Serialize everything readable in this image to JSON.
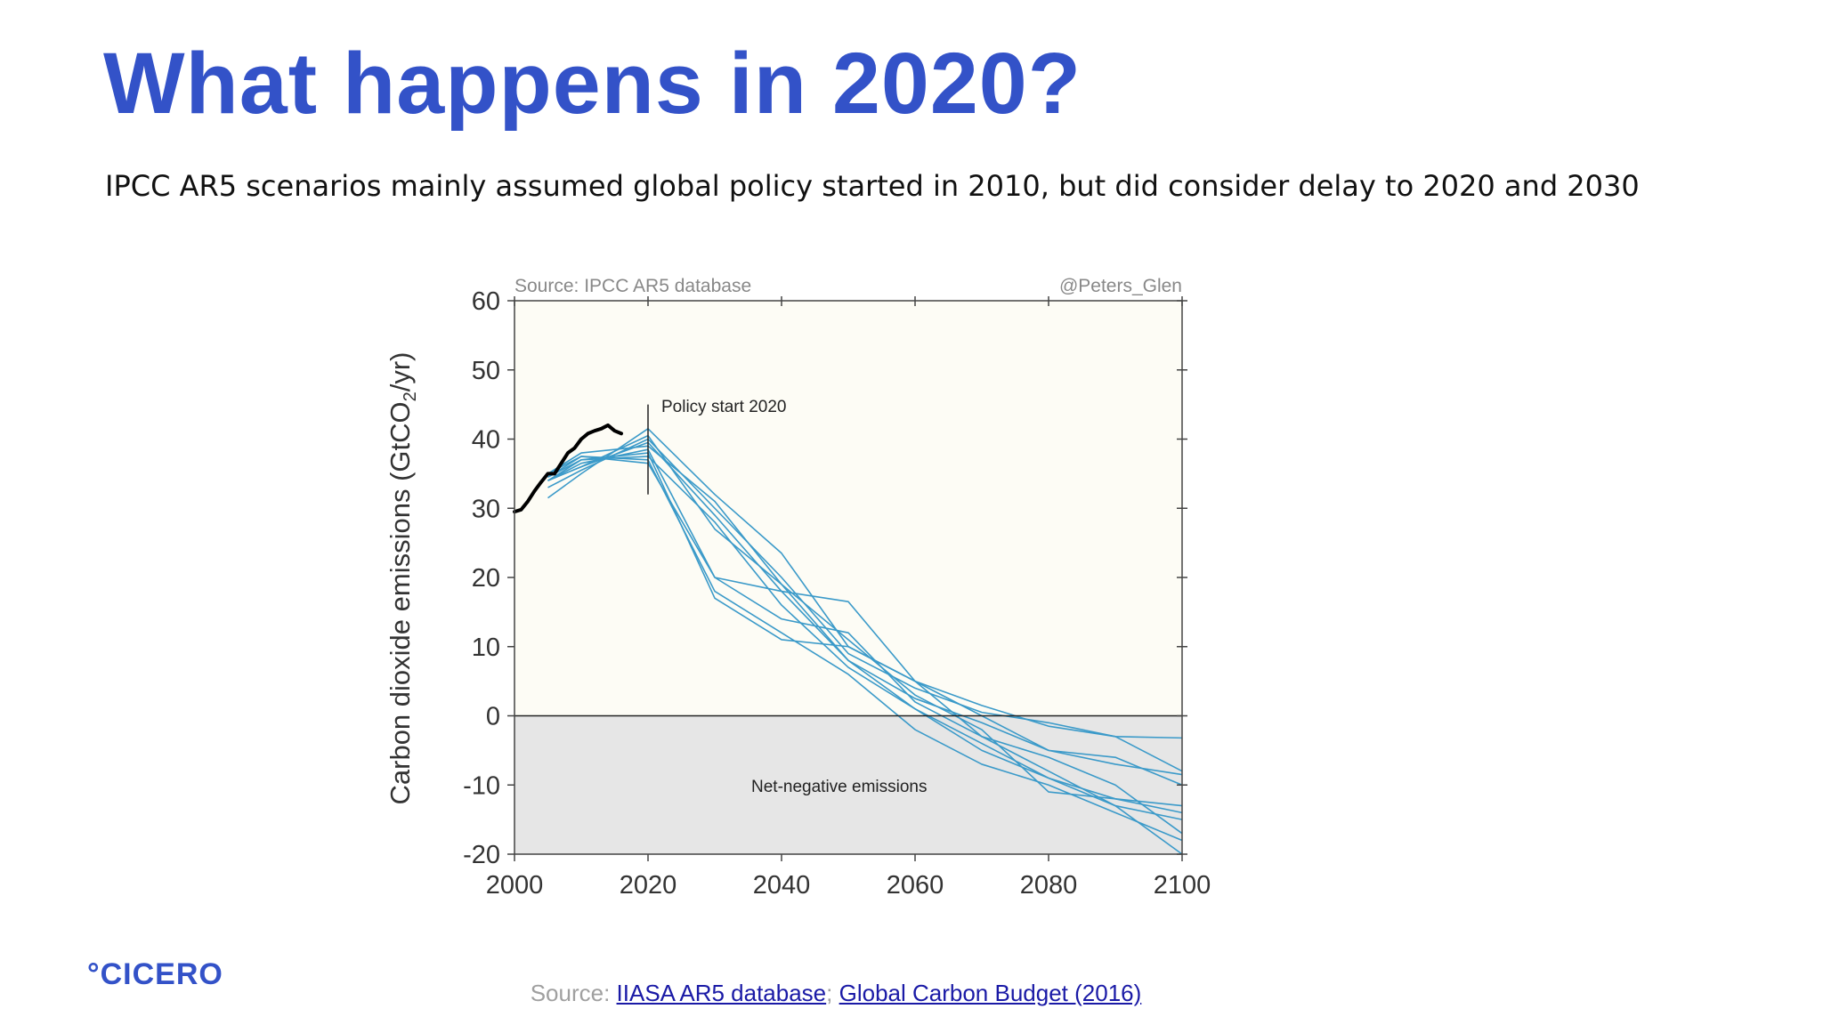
{
  "slide": {
    "title": "What happens in 2020?",
    "subtitle": "IPCC AR5 scenarios mainly assumed global policy started in 2010, but did consider delay to 2020 and 2030",
    "logo": "°CICERO",
    "footer": {
      "prefix": "Source: ",
      "link1": "IIASA AR5 database",
      "separator": "; ",
      "link2": "Global Carbon Budget (2016)"
    }
  },
  "colors": {
    "title": "#3352c8",
    "scenario_line": "#3b9ac9",
    "historical_line": "#000000",
    "plot_bg": "#fdfcf5",
    "negative_bg": "#e6e6e6"
  },
  "chart_data": {
    "type": "line",
    "source_text": "Source: IPCC AR5 database",
    "credit_text": "@Peters_Glen",
    "ylabel": "Carbon dioxide emissions (GtCO",
    "ylabel_sub": "2",
    "ylabel_suffix": "/yr)",
    "xlim": [
      2000,
      2100
    ],
    "ylim": [
      -20,
      60
    ],
    "xticks": [
      2000,
      2020,
      2040,
      2060,
      2080,
      2100
    ],
    "yticks": [
      60,
      50,
      40,
      30,
      20,
      10,
      0,
      -10,
      -20
    ],
    "grid": false,
    "annotations": {
      "policy_start": "Policy start 2020",
      "policy_year": 2020,
      "net_negative": "Net-negative emissions"
    },
    "historical": {
      "x": [
        2000,
        2001,
        2002,
        2003,
        2004,
        2005,
        2006,
        2007,
        2008,
        2009,
        2010,
        2011,
        2012,
        2013,
        2014,
        2015,
        2016
      ],
      "y": [
        29.5,
        29.8,
        31.0,
        32.5,
        33.8,
        35.0,
        35.0,
        36.5,
        38.0,
        38.7,
        40.0,
        40.8,
        41.2,
        41.5,
        42.0,
        41.2,
        40.8
      ]
    },
    "scenarios": [
      {
        "x": [
          2005,
          2010,
          2020,
          2030,
          2040,
          2050,
          2060,
          2070,
          2080,
          2090,
          2100
        ],
        "y": [
          31.5,
          35,
          41.5,
          32,
          23.5,
          10,
          5,
          1.5,
          -1.5,
          -3,
          -3.2
        ]
      },
      {
        "x": [
          2005,
          2010,
          2020,
          2030,
          2040,
          2050,
          2060,
          2070,
          2080,
          2090,
          2100
        ],
        "y": [
          33,
          35.5,
          40,
          30,
          20,
          9,
          4,
          0.5,
          -1,
          -3,
          -8
        ]
      },
      {
        "x": [
          2005,
          2010,
          2020,
          2030,
          2040,
          2050,
          2060,
          2070,
          2080,
          2090,
          2100
        ],
        "y": [
          34,
          36,
          39.5,
          29,
          18,
          8,
          1,
          -4,
          -9,
          -12,
          -13
        ]
      },
      {
        "x": [
          2005,
          2010,
          2020,
          2030,
          2040,
          2050,
          2060,
          2070,
          2080,
          2090,
          2100
        ],
        "y": [
          34,
          36.5,
          38.5,
          20,
          18,
          16.5,
          5,
          -3,
          -8,
          -13,
          -20
        ]
      },
      {
        "x": [
          2005,
          2010,
          2020,
          2030,
          2040,
          2050,
          2060,
          2070,
          2080,
          2090,
          2100
        ],
        "y": [
          34.5,
          37,
          38,
          17,
          11,
          10,
          5,
          0,
          -5,
          -7,
          -8.5
        ]
      },
      {
        "x": [
          2005,
          2010,
          2020,
          2030,
          2040,
          2050,
          2060,
          2070,
          2080,
          2090,
          2100
        ],
        "y": [
          34,
          37,
          37.5,
          28,
          16,
          7,
          1,
          -5,
          -9,
          -13,
          -15
        ]
      },
      {
        "x": [
          2005,
          2010,
          2020,
          2030,
          2040,
          2050,
          2060,
          2070,
          2080,
          2090,
          2100
        ],
        "y": [
          34.5,
          37.5,
          37,
          18,
          12,
          6,
          -2,
          -7,
          -10,
          -14,
          -18
        ]
      },
      {
        "x": [
          2005,
          2010,
          2020,
          2030,
          2040,
          2050,
          2060,
          2070,
          2080,
          2090,
          2100
        ],
        "y": [
          35,
          37.5,
          36.5,
          20,
          14,
          12,
          2,
          -3,
          -6,
          -10,
          -17
        ]
      },
      {
        "x": [
          2005,
          2010,
          2020,
          2030,
          2040,
          2050,
          2060,
          2070,
          2080,
          2090,
          2100
        ],
        "y": [
          35,
          38,
          39,
          31,
          19,
          11,
          3,
          -2,
          -11,
          -12,
          -14
        ]
      },
      {
        "x": [
          2005,
          2010,
          2020,
          2030,
          2040,
          2050,
          2060,
          2070,
          2080,
          2090,
          2100
        ],
        "y": [
          34,
          36,
          40.5,
          27,
          19,
          8,
          2.5,
          -1,
          -5,
          -6,
          -10
        ]
      }
    ]
  }
}
